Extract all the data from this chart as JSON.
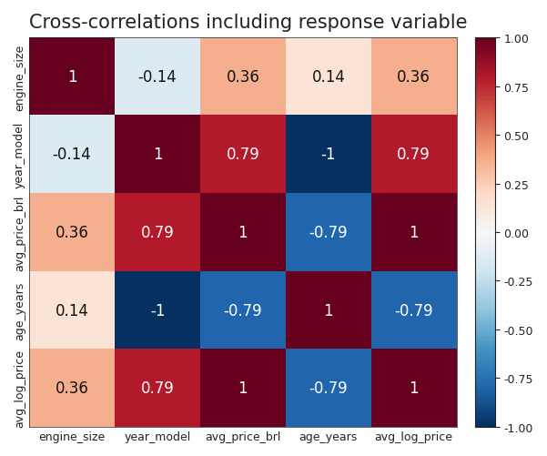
{
  "title": "Cross-correlations including response variable",
  "labels": [
    "engine_size",
    "year_model",
    "avg_price_brl",
    "age_years",
    "avg_log_price"
  ],
  "matrix": [
    [
      1.0,
      -0.14,
      0.36,
      0.14,
      0.36
    ],
    [
      -0.14,
      1.0,
      0.79,
      -1.0,
      0.79
    ],
    [
      0.36,
      0.79,
      1.0,
      -0.79,
      1.0
    ],
    [
      0.14,
      -1.0,
      -0.79,
      1.0,
      -0.79
    ],
    [
      0.36,
      0.79,
      1.0,
      -0.79,
      1.0
    ]
  ],
  "cmap": "RdBu_r",
  "vmin": -1.0,
  "vmax": 1.0,
  "title_fontsize": 15,
  "label_fontsize": 9,
  "annot_fontsize": 12,
  "background_color": "#ffffff",
  "text_color_label": "#222222",
  "text_color_light": "white",
  "text_color_dark": "#111111",
  "colorbar_ticks": [
    -1.0,
    -0.75,
    -0.5,
    -0.25,
    0.0,
    0.25,
    0.5,
    0.75,
    1.0
  ],
  "colorbar_ticklabels": [
    "-1.00",
    "-0.75",
    "-0.50",
    "-0.25",
    "0.00",
    "0.25",
    "0.50",
    "0.75",
    "1.00"
  ]
}
